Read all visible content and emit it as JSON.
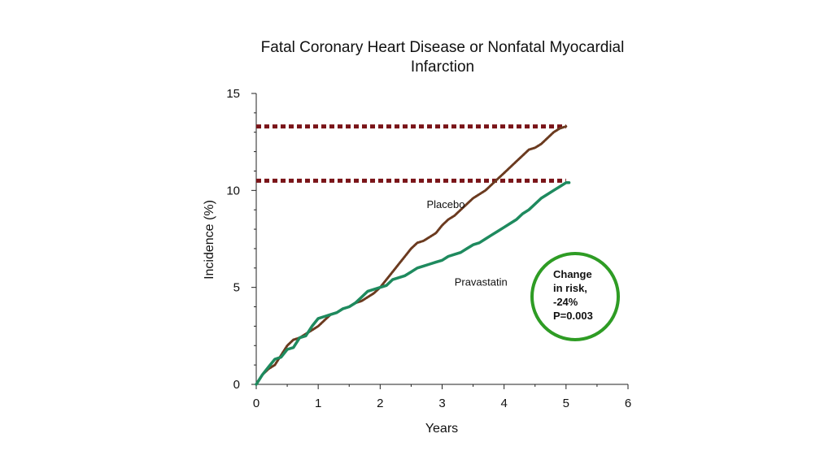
{
  "chart_data": {
    "type": "line",
    "title": "Fatal Coronary Heart Disease or Nonfatal Myocardial Infarction",
    "title_lines": [
      "Fatal Coronary Heart Disease or Nonfatal Myocardial",
      "Infarction"
    ],
    "xlabel": "Years",
    "ylabel": "Incidence (%)",
    "xlim": [
      0,
      6
    ],
    "ylim": [
      0,
      15
    ],
    "x_ticks": [
      0,
      1,
      2,
      3,
      4,
      5,
      6
    ],
    "x_tick_labels": [
      "0",
      "1",
      "2",
      "3",
      "4",
      "5",
      "6"
    ],
    "y_ticks": [
      0,
      5,
      10,
      15
    ],
    "y_tick_labels": [
      "0",
      "5",
      "10",
      "15"
    ],
    "grid": false,
    "legend": "none",
    "series": [
      {
        "name": "Placebo",
        "style": "dotted",
        "color": "#6b3a1f",
        "x": [
          0,
          0.1,
          0.2,
          0.3,
          0.4,
          0.5,
          0.6,
          0.7,
          0.8,
          0.9,
          1.0,
          1.1,
          1.2,
          1.3,
          1.4,
          1.5,
          1.6,
          1.7,
          1.8,
          1.9,
          2.0,
          2.1,
          2.2,
          2.3,
          2.4,
          2.5,
          2.6,
          2.7,
          2.8,
          2.9,
          3.0,
          3.1,
          3.2,
          3.3,
          3.4,
          3.5,
          3.6,
          3.7,
          3.8,
          3.9,
          4.0,
          4.1,
          4.2,
          4.3,
          4.4,
          4.5,
          4.6,
          4.7,
          4.8,
          4.9,
          5.0
        ],
        "y": [
          0,
          0.5,
          0.8,
          1.0,
          1.5,
          2.0,
          2.3,
          2.4,
          2.6,
          2.8,
          3.0,
          3.3,
          3.6,
          3.7,
          3.9,
          4.0,
          4.2,
          4.3,
          4.5,
          4.7,
          5.0,
          5.4,
          5.8,
          6.2,
          6.6,
          7.0,
          7.3,
          7.4,
          7.6,
          7.8,
          8.2,
          8.5,
          8.7,
          9.0,
          9.3,
          9.6,
          9.8,
          10.0,
          10.3,
          10.6,
          10.9,
          11.2,
          11.5,
          11.8,
          12.1,
          12.2,
          12.4,
          12.7,
          13.0,
          13.2,
          13.3
        ]
      },
      {
        "name": "Pravastatin",
        "style": "solid",
        "color": "#1e8a5e",
        "x": [
          0,
          0.1,
          0.2,
          0.3,
          0.4,
          0.5,
          0.6,
          0.7,
          0.8,
          0.9,
          1.0,
          1.1,
          1.2,
          1.3,
          1.4,
          1.5,
          1.6,
          1.7,
          1.8,
          1.9,
          2.0,
          2.1,
          2.2,
          2.3,
          2.4,
          2.5,
          2.6,
          2.7,
          2.8,
          2.9,
          3.0,
          3.1,
          3.2,
          3.3,
          3.4,
          3.5,
          3.6,
          3.7,
          3.8,
          3.9,
          4.0,
          4.1,
          4.2,
          4.3,
          4.4,
          4.5,
          4.6,
          4.7,
          4.8,
          4.9,
          5.0,
          5.05
        ],
        "y": [
          0,
          0.5,
          0.9,
          1.3,
          1.4,
          1.8,
          1.9,
          2.4,
          2.5,
          3.0,
          3.4,
          3.5,
          3.6,
          3.7,
          3.9,
          4.0,
          4.2,
          4.5,
          4.8,
          4.9,
          5.0,
          5.1,
          5.4,
          5.5,
          5.6,
          5.8,
          6.0,
          6.1,
          6.2,
          6.3,
          6.4,
          6.6,
          6.7,
          6.8,
          7.0,
          7.2,
          7.3,
          7.5,
          7.7,
          7.9,
          8.1,
          8.3,
          8.5,
          8.8,
          9.0,
          9.3,
          9.6,
          9.8,
          10.0,
          10.2,
          10.4,
          10.4
        ]
      }
    ],
    "reference_lines": [
      {
        "y": 13.3,
        "x_start": 0,
        "x_end": 5,
        "style": "dotted",
        "color": "#7a1418"
      },
      {
        "y": 10.5,
        "x_start": 0,
        "x_end": 5,
        "style": "dotted",
        "color": "#7a1418"
      }
    ],
    "series_labels": [
      {
        "text": "Placebo",
        "x": 2.75,
        "y": 9.1
      },
      {
        "text": "Pravastatin",
        "x": 3.2,
        "y": 5.1
      }
    ],
    "annotation": {
      "lines": [
        "Change",
        "in risk,",
        "-24%",
        "P=0.003"
      ],
      "circle_color": "#2e9c24"
    }
  }
}
